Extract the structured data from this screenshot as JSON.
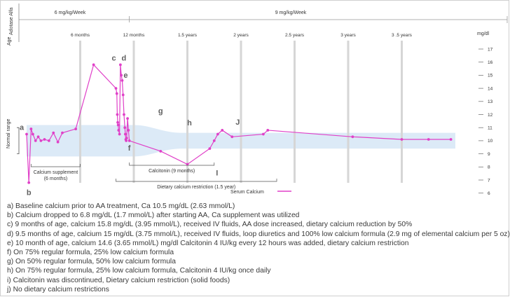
{
  "chart_data": {
    "type": "line",
    "side_label": "Adotase Alfa",
    "age_label": "Age",
    "y_unit": "mg/dl",
    "y_label": "Normal range",
    "ylim": [
      6,
      17
    ],
    "y_ticks": [
      "17",
      "16",
      "15",
      "14",
      "13",
      "12",
      "11",
      "10",
      "9",
      "8",
      "7",
      "6"
    ],
    "normal_range": [
      9.4,
      10.6
    ],
    "dose_periods": [
      {
        "label": "6 mg/kg/Week",
        "start": 0,
        "end": 11.5
      },
      {
        "label": "9 mg/kg/Week",
        "start": 11.5,
        "end": 45
      }
    ],
    "age_ticks": [
      {
        "label": "6 months",
        "month": 6
      },
      {
        "label": "12 months",
        "month": 12
      },
      {
        "label": "1.5 years",
        "month": 18
      },
      {
        "label": "2 years",
        "month": 24
      },
      {
        "label": "2.5 years",
        "month": 30
      },
      {
        "label": "3 years",
        "month": 36
      },
      {
        "label": "3 .5 years",
        "month": 42
      }
    ],
    "series": [
      {
        "name": "Serum Calcium",
        "color": "#e040c8",
        "x": [
          0,
          0.25,
          0.5,
          0.7,
          1,
          1.3,
          1.6,
          2,
          2.5,
          3,
          3.5,
          4,
          5.5,
          7.5,
          10,
          10.1,
          10.15,
          10.2,
          10.25,
          10.3,
          10.4,
          10.5,
          10.6,
          10.7,
          10.8,
          10.9,
          11,
          11.05,
          11.1,
          11.15,
          11.2,
          11.3,
          11.4,
          11.5,
          15,
          18,
          20.5,
          21,
          21.4,
          21.9,
          23,
          26.5,
          27,
          36.5,
          42,
          45,
          47.5
        ],
        "y": [
          10.5,
          6.8,
          10.9,
          10.5,
          10,
          10.3,
          10,
          10.1,
          10,
          10.6,
          9.9,
          10.6,
          10.9,
          15.8,
          14,
          13.6,
          12,
          11.4,
          11.2,
          10.8,
          10.5,
          15.8,
          15,
          14.6,
          13.5,
          12,
          11,
          10.5,
          10.1,
          10,
          10.2,
          11.7,
          10.8,
          10,
          9.2,
          8.2,
          9.4,
          10,
          10.5,
          10.8,
          10.3,
          10.5,
          10.8,
          10.3,
          10.1,
          10.1,
          10.1
        ]
      }
    ],
    "annotations": [
      {
        "label": "a",
        "x": 0,
        "y": 10.6
      },
      {
        "label": "b",
        "x": 0.25,
        "y": 6.8
      },
      {
        "label": "c",
        "x": 10,
        "y": 15.8
      },
      {
        "label": "d",
        "x": 10.5,
        "y": 15.8
      },
      {
        "label": "e",
        "x": 10.7,
        "y": 14.6
      },
      {
        "label": "f",
        "x": 11.5,
        "y": 10
      },
      {
        "label": "g",
        "x": 15,
        "y": 11.7
      },
      {
        "label": "h",
        "x": 18,
        "y": 10.8
      },
      {
        "label": "I",
        "x": 21,
        "y": 8.2
      },
      {
        "label": "J",
        "x": 23,
        "y": 10.8
      }
    ],
    "bracket_notes": [
      {
        "label": "Calcium supplement",
        "sub": "(6 months)",
        "start": 0.5,
        "end": 6
      },
      {
        "label": "Calcitonin (9 months)",
        "start": 11.5,
        "end": 21
      },
      {
        "label": "Dietary calcium restriction (1.5 year)",
        "start": 10,
        "end": 28
      }
    ],
    "legend": {
      "label": "Serum Calcium",
      "placement": "bottom-center"
    }
  },
  "notes": [
    "a)  Baseline calcium prior to AA treatment, Ca 10.5 mg/dL (2.63 mmol/L)",
    "b)  Calcium dropped to 6.8 mg/dL (1.7 mmol/L) after starting AA, Ca supplement was utilized",
    "c)  9 months of age, calcium 15.8 mg/dL (3.95 mmol/L), received IV fluids, AA dose increased, dietary calcium reduction by 50%",
    "d)  9.5 months of age, calcium 15 mg/dL (3.75 mmol/L), received IV fluids, loop diuretics and 100% low calcium formula (2.9 mg of elemental calcium per 5 oz)",
    "e)  10 month of age, calcium 14.6 (3.65 mmol/L) mg/dl Calcitonin 4 IU/kg every 12 hours was added, dietary calcium restriction",
    "f)  On 75% regular formula, 25% low calcium formula",
    "g)  On 50% regular formula, 50% low calcium formula",
    "h)  On 75% regular formula, 25% low calcium formula, Calcitonin 4 IU/kg  once daily",
    "i)  Calcitonin was discontinued, Dietary calcium restriction (solid foods)",
    "j)  No dietary calcium restrictions"
  ]
}
